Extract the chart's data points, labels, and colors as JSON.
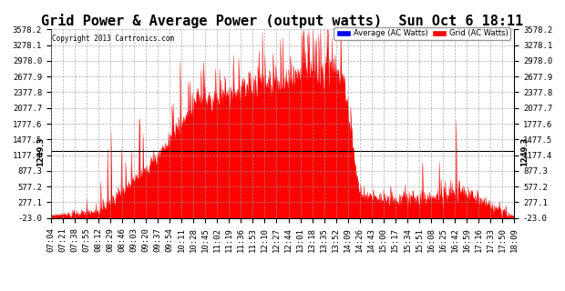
{
  "title": "Grid Power & Average Power (output watts)  Sun Oct 6 18:11",
  "copyright": "Copyright 2013 Cartronics.com",
  "legend_avg_label": "Average (AC Watts)",
  "legend_grid_label": "Grid (AC Watts)",
  "avg_line_value": 1249.3,
  "ymin": -23.0,
  "ymax": 3578.2,
  "yticks": [
    3578.2,
    3278.1,
    2978.0,
    2677.9,
    2377.8,
    2077.7,
    1777.6,
    1477.5,
    1177.4,
    877.3,
    577.2,
    277.1,
    -23.0
  ],
  "fill_color": "#FF0000",
  "avg_line_color": "#0000CC",
  "background_color": "#FFFFFF",
  "grid_color": "#999999",
  "title_fontsize": 11,
  "tick_fontsize": 6.5,
  "x_labels": [
    "07:04",
    "07:21",
    "07:38",
    "07:55",
    "08:12",
    "08:29",
    "08:46",
    "09:03",
    "09:20",
    "09:37",
    "09:54",
    "10:11",
    "10:28",
    "10:45",
    "11:02",
    "11:19",
    "11:36",
    "11:53",
    "12:10",
    "12:27",
    "12:44",
    "13:01",
    "13:18",
    "13:35",
    "13:52",
    "14:09",
    "14:26",
    "14:43",
    "15:00",
    "15:17",
    "15:34",
    "15:51",
    "16:08",
    "16:25",
    "16:42",
    "16:59",
    "17:16",
    "17:33",
    "17:50",
    "18:09"
  ]
}
